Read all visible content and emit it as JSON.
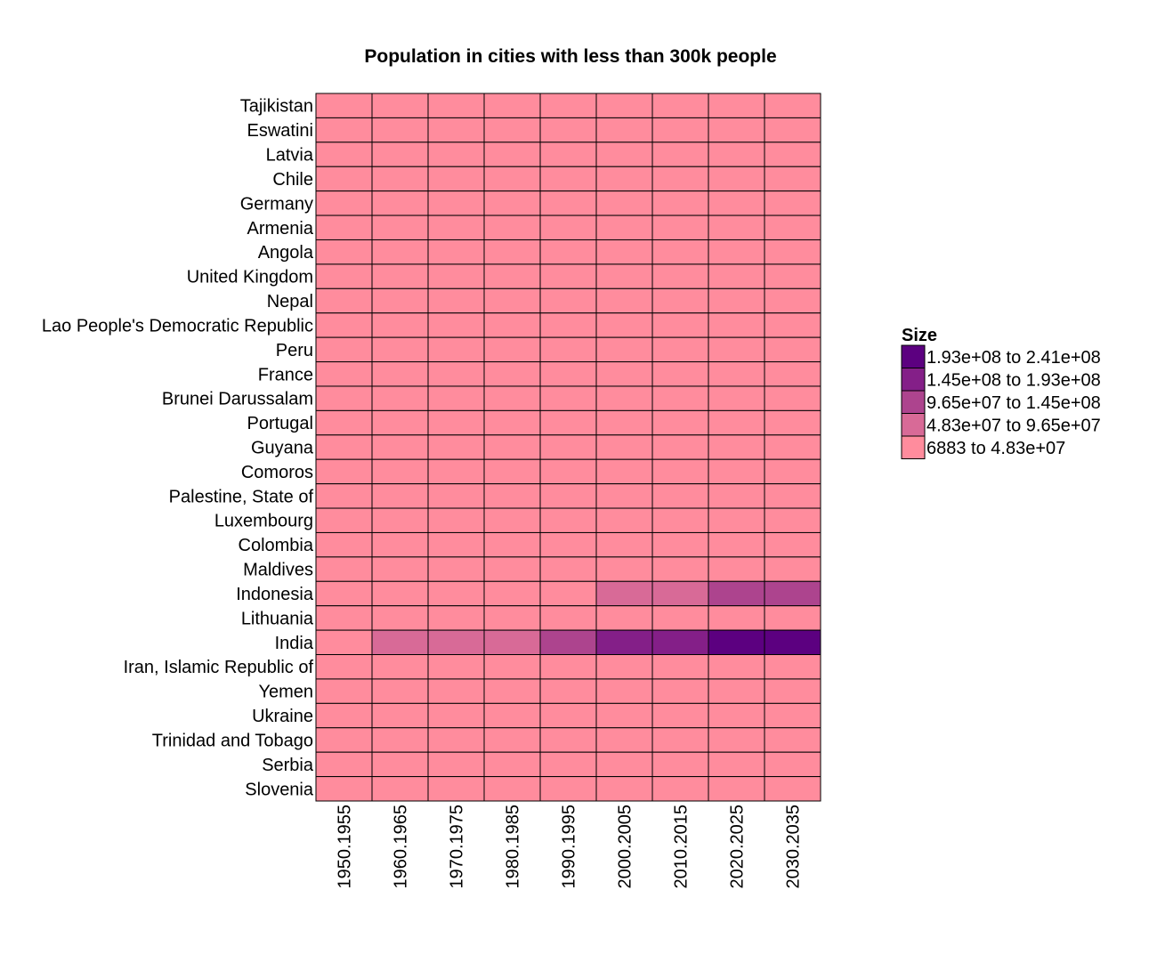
{
  "chart_data": {
    "type": "heatmap",
    "title": "Population in cities with less than 300k people",
    "xlabel": "",
    "ylabel": "",
    "grid": false,
    "legend_position": "right",
    "legend": {
      "title": "Size",
      "bins": [
        {
          "label": "1.93e+08 to 2.41e+08",
          "color": "#5c0080"
        },
        {
          "label": "1.45e+08 to 1.93e+08",
          "color": "#841f88"
        },
        {
          "label": "9.65e+07 to 1.45e+08",
          "color": "#ad448e"
        },
        {
          "label": "4.83e+07 to 9.65e+07",
          "color": "#d86a97"
        },
        {
          "label": "6883 to 4.83e+07",
          "color": "#ff8c9d"
        }
      ]
    },
    "x_categories": [
      "1950.1955",
      "1960.1965",
      "1970.1975",
      "1980.1985",
      "1990.1995",
      "2000.2005",
      "2010.2015",
      "2020.2025",
      "2030.2035"
    ],
    "y_categories": [
      "Tajikistan",
      "Eswatini",
      "Latvia",
      "Chile",
      "Germany",
      "Armenia",
      "Angola",
      "United Kingdom",
      "Nepal",
      "Lao People's Democratic Republic",
      "Peru",
      "France",
      "Brunei Darussalam",
      "Portugal",
      "Guyana",
      "Comoros",
      "Palestine, State of",
      "Luxembourg",
      "Colombia",
      "Maldives",
      "Indonesia",
      "Lithuania",
      "India",
      "Iran, Islamic Republic of",
      "Yemen",
      "Ukraine",
      "Trinidad and Tobago",
      "Serbia",
      "Slovenia"
    ],
    "bin_index": [
      [
        4,
        4,
        4,
        4,
        4,
        4,
        4,
        4,
        4
      ],
      [
        4,
        4,
        4,
        4,
        4,
        4,
        4,
        4,
        4
      ],
      [
        4,
        4,
        4,
        4,
        4,
        4,
        4,
        4,
        4
      ],
      [
        4,
        4,
        4,
        4,
        4,
        4,
        4,
        4,
        4
      ],
      [
        4,
        4,
        4,
        4,
        4,
        4,
        4,
        4,
        4
      ],
      [
        4,
        4,
        4,
        4,
        4,
        4,
        4,
        4,
        4
      ],
      [
        4,
        4,
        4,
        4,
        4,
        4,
        4,
        4,
        4
      ],
      [
        4,
        4,
        4,
        4,
        4,
        4,
        4,
        4,
        4
      ],
      [
        4,
        4,
        4,
        4,
        4,
        4,
        4,
        4,
        4
      ],
      [
        4,
        4,
        4,
        4,
        4,
        4,
        4,
        4,
        4
      ],
      [
        4,
        4,
        4,
        4,
        4,
        4,
        4,
        4,
        4
      ],
      [
        4,
        4,
        4,
        4,
        4,
        4,
        4,
        4,
        4
      ],
      [
        4,
        4,
        4,
        4,
        4,
        4,
        4,
        4,
        4
      ],
      [
        4,
        4,
        4,
        4,
        4,
        4,
        4,
        4,
        4
      ],
      [
        4,
        4,
        4,
        4,
        4,
        4,
        4,
        4,
        4
      ],
      [
        4,
        4,
        4,
        4,
        4,
        4,
        4,
        4,
        4
      ],
      [
        4,
        4,
        4,
        4,
        4,
        4,
        4,
        4,
        4
      ],
      [
        4,
        4,
        4,
        4,
        4,
        4,
        4,
        4,
        4
      ],
      [
        4,
        4,
        4,
        4,
        4,
        4,
        4,
        4,
        4
      ],
      [
        4,
        4,
        4,
        4,
        4,
        4,
        4,
        4,
        4
      ],
      [
        4,
        4,
        4,
        4,
        4,
        3,
        3,
        2,
        2
      ],
      [
        4,
        4,
        4,
        4,
        4,
        4,
        4,
        4,
        4
      ],
      [
        4,
        3,
        3,
        3,
        2,
        1,
        1,
        0,
        0
      ],
      [
        4,
        4,
        4,
        4,
        4,
        4,
        4,
        4,
        4
      ],
      [
        4,
        4,
        4,
        4,
        4,
        4,
        4,
        4,
        4
      ],
      [
        4,
        4,
        4,
        4,
        4,
        4,
        4,
        4,
        4
      ],
      [
        4,
        4,
        4,
        4,
        4,
        4,
        4,
        4,
        4
      ],
      [
        4,
        4,
        4,
        4,
        4,
        4,
        4,
        4,
        4
      ],
      [
        4,
        4,
        4,
        4,
        4,
        4,
        4,
        4,
        4
      ]
    ]
  }
}
